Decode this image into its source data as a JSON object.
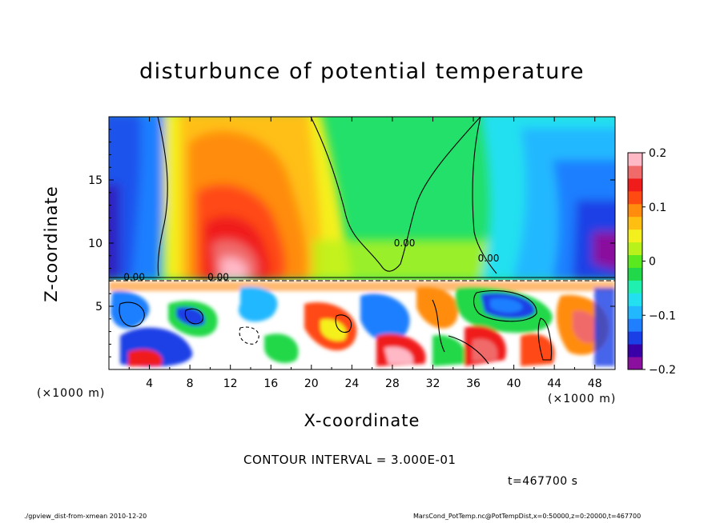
{
  "chart_data": {
    "type": "heatmap",
    "title": "disturbunce of potential temperature",
    "xlabel": "X-coordinate",
    "ylabel": "Z-coordinate",
    "x_unit_left": "(×1000 m)",
    "x_unit_right": "(×1000 m)",
    "xlim": [
      0,
      50
    ],
    "ylim": [
      0,
      20
    ],
    "x_ticks": [
      4,
      8,
      12,
      16,
      20,
      24,
      28,
      32,
      36,
      40,
      44,
      48
    ],
    "y_ticks": [
      5,
      10,
      15
    ],
    "colorbar": {
      "range": [
        -0.2,
        0.2
      ],
      "ticks": [
        {
          "value": 0.2,
          "label": "0.2"
        },
        {
          "value": 0.1,
          "label": "0.1"
        },
        {
          "value": 0,
          "label": "0"
        },
        {
          "value": -0.1,
          "label": "−0.1"
        },
        {
          "value": -0.2,
          "label": "−0.2"
        }
      ],
      "colors": [
        "#8a0f9e",
        "#3a00a8",
        "#1a3fe6",
        "#1f7fff",
        "#22b8ff",
        "#23e0f0",
        "#1ff0b0",
        "#20d84a",
        "#5ae81e",
        "#b8f21a",
        "#f4f01e",
        "#ffbf12",
        "#ff8c0c",
        "#ff4a12",
        "#f01c1c",
        "#f06a6a",
        "#ffb8c6"
      ]
    },
    "contour_labels": [
      {
        "x": 2.5,
        "z": 7.3,
        "text": "0.00"
      },
      {
        "x": 10.8,
        "z": 7.3,
        "text": "0.00"
      },
      {
        "x": 29.2,
        "z": 10.0,
        "text": "0.00"
      },
      {
        "x": 37.5,
        "z": 8.8,
        "text": "0.00"
      }
    ],
    "features": [
      {
        "name": "warm anomaly",
        "x": 12,
        "z": 10,
        "value": 0.2
      },
      {
        "name": "cold anomaly",
        "x": 49,
        "z": 9,
        "value": -0.2
      },
      {
        "name": "cold anomaly",
        "x": 0.5,
        "z": 16,
        "value": -0.1
      }
    ]
  },
  "annotations": {
    "contour_interval": "CONTOUR INTERVAL = 3.000E-01",
    "time": "t=467700 s",
    "footer_left": "./gpview_dist-from-xmean   2010-12-20",
    "footer_right": "MarsCond_PotTemp.nc@PotTempDist,x=0:50000,z=0:20000,t=467700"
  }
}
